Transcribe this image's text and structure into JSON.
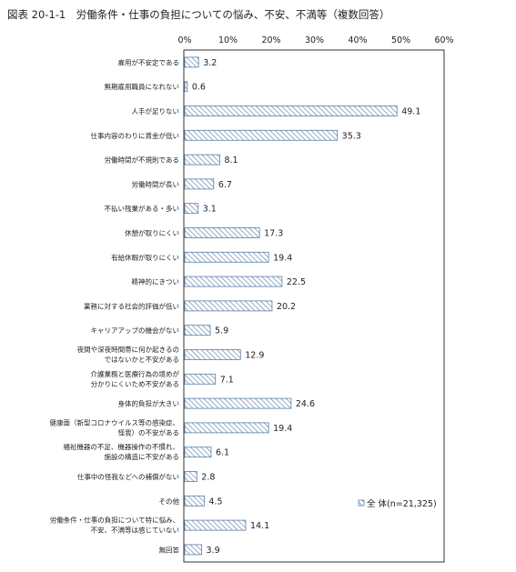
{
  "title": "図表 20-1-1　労働条件・仕事の負担についての悩み、不安、不満等（複数回答）",
  "chart_data": {
    "type": "bar",
    "orientation": "horizontal",
    "title": "図表 20-1-1　労働条件・仕事の負担についての悩み、不安、不満等（複数回答）",
    "xlim": [
      0,
      60
    ],
    "ticks": [
      "0%",
      "10%",
      "20%",
      "30%",
      "40%",
      "50%",
      "60%"
    ],
    "tick_values": [
      0,
      10,
      20,
      30,
      40,
      50,
      60
    ],
    "categories": [
      [
        "雇用が不安定である"
      ],
      [
        "無期雇用職員になれない"
      ],
      [
        "人手が足りない"
      ],
      [
        "仕事内容のわりに賃金が低い"
      ],
      [
        "労働時間が不規則である"
      ],
      [
        "労働時間が長い"
      ],
      [
        "不払い残業がある・多い"
      ],
      [
        "休憩が取りにくい"
      ],
      [
        "有給休暇が取りにくい"
      ],
      [
        "精神的にきつい"
      ],
      [
        "業務に対する社会的評価が低い"
      ],
      [
        "キャリアアップの機会がない"
      ],
      [
        "夜間や深夜時間帯に何か起きるの",
        "ではないかと不安がある"
      ],
      [
        "介護業務と医療行為の境めが",
        "分かりにくいため不安がある"
      ],
      [
        "身体的負担が大きい"
      ],
      [
        "健康面（新型コロナウイルス等の感染症、",
        "怪我）の不安がある"
      ],
      [
        "福祉機器の不足、機器操作の不慣れ、",
        "施設の構造に不安がある"
      ],
      [
        "仕事中の怪我などへの補償がない"
      ],
      [
        "その他"
      ],
      [
        "労働条件・仕事の負担について特に悩み、",
        "不安、不満等は感じていない"
      ],
      [
        "無回答"
      ]
    ],
    "series": [
      {
        "name": "全 体(n=21,325)",
        "values": [
          3.2,
          0.6,
          49.1,
          35.3,
          8.1,
          6.7,
          3.1,
          17.3,
          19.4,
          22.5,
          20.2,
          5.9,
          12.9,
          7.1,
          24.6,
          19.4,
          6.1,
          2.8,
          4.5,
          14.1,
          3.9
        ],
        "labels": [
          "3.2",
          "0.6",
          "49.1",
          "35.3",
          "8.1",
          "6.7",
          "3.1",
          "17.3",
          "19.4",
          "22.5",
          "20.2",
          "5.9",
          "12.9",
          "7.1",
          "24.6",
          "19.4",
          "6.1",
          "2.8",
          "4.5",
          "14.1",
          "3.9"
        ],
        "fill": "hatched",
        "color": "#5b7fa6"
      }
    ],
    "legend": "bottom-right",
    "grid": false
  }
}
